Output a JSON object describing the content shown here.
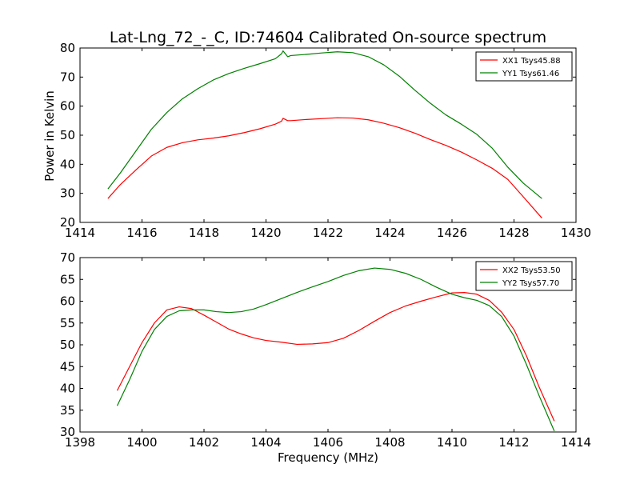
{
  "figure": {
    "title": "Lat-Lng_72_-_C, ID:74604 Calibrated On-source spectrum",
    "xlabel": "Frequency (MHz)",
    "ylabel": "Power in Kelvin"
  },
  "colors": {
    "red": "#ff0000",
    "green": "#008000"
  },
  "chart_data": [
    {
      "type": "line",
      "title": "Lat-Lng_72_-_C, ID:74604 Calibrated On-source spectrum",
      "xlabel": "",
      "ylabel": "Power in Kelvin",
      "xlim": [
        1414,
        1430
      ],
      "ylim": [
        20,
        80
      ],
      "xticks": [
        1414,
        1416,
        1418,
        1420,
        1422,
        1424,
        1426,
        1428,
        1430
      ],
      "yticks": [
        20,
        30,
        40,
        50,
        60,
        70,
        80
      ],
      "grid": false,
      "legend": "top-right",
      "series": [
        {
          "name": "XX1 Tsys45.88",
          "color": "#ff0000",
          "x": [
            1414.9,
            1415.3,
            1415.8,
            1416.3,
            1416.8,
            1417.3,
            1417.8,
            1418.3,
            1418.8,
            1419.3,
            1419.8,
            1420.3,
            1420.5,
            1420.55,
            1420.7,
            1420.8,
            1421.3,
            1421.8,
            1422.3,
            1422.8,
            1423.3,
            1423.8,
            1424.3,
            1424.8,
            1425.3,
            1425.8,
            1426.3,
            1426.8,
            1427.3,
            1427.8,
            1428.3,
            1428.9
          ],
          "y": [
            28.2,
            33,
            38,
            42.8,
            45.8,
            47.4,
            48.4,
            49,
            49.8,
            50.9,
            52.2,
            53.8,
            54.8,
            55.8,
            55,
            55,
            55.4,
            55.7,
            56,
            55.9,
            55.3,
            54.1,
            52.6,
            50.7,
            48.5,
            46.5,
            44.2,
            41.5,
            38.6,
            34.8,
            28.8,
            21.5
          ]
        },
        {
          "name": "YY1 Tsys61.46",
          "color": "#008000",
          "x": [
            1414.9,
            1415.3,
            1415.8,
            1416.3,
            1416.8,
            1417.3,
            1417.8,
            1418.3,
            1418.8,
            1419.3,
            1419.8,
            1420.3,
            1420.5,
            1420.55,
            1420.7,
            1420.8,
            1421.3,
            1421.8,
            1422.3,
            1422.8,
            1423.3,
            1423.8,
            1424.3,
            1424.8,
            1425.3,
            1425.8,
            1426.3,
            1426.8,
            1427.3,
            1427.8,
            1428.3,
            1428.9
          ],
          "y": [
            31.5,
            37,
            44.5,
            52,
            57.8,
            62.5,
            66,
            69,
            71.2,
            73,
            74.6,
            76.3,
            78,
            79,
            77,
            77.4,
            77.8,
            78.3,
            78.7,
            78.4,
            77,
            74.2,
            70.3,
            65.5,
            61,
            57,
            53.8,
            50.3,
            45.5,
            39,
            33.5,
            28.2
          ]
        }
      ]
    },
    {
      "type": "line",
      "title": "",
      "xlabel": "Frequency (MHz)",
      "ylabel": "",
      "xlim": [
        1398,
        1414
      ],
      "ylim": [
        30,
        70
      ],
      "xticks": [
        1398,
        1400,
        1402,
        1404,
        1406,
        1408,
        1410,
        1412,
        1414
      ],
      "yticks": [
        30,
        35,
        40,
        45,
        50,
        55,
        60,
        65,
        70
      ],
      "grid": false,
      "legend": "top-right",
      "series": [
        {
          "name": "XX2 Tsys53.50",
          "color": "#ff0000",
          "x": [
            1399.2,
            1399.6,
            1400,
            1400.4,
            1400.8,
            1401.2,
            1401.6,
            1402,
            1402.4,
            1402.8,
            1403.2,
            1403.6,
            1404,
            1404.5,
            1405,
            1405.5,
            1406,
            1406.5,
            1407,
            1407.5,
            1408,
            1408.5,
            1409,
            1409.5,
            1410,
            1410.4,
            1410.8,
            1411.2,
            1411.6,
            1412,
            1412.4,
            1412.8,
            1413.3
          ],
          "y": [
            39.5,
            45,
            50.5,
            55,
            58,
            58.7,
            58.3,
            56.8,
            55.2,
            53.6,
            52.5,
            51.6,
            51,
            50.6,
            50.1,
            50.2,
            50.5,
            51.5,
            53.3,
            55.4,
            57.4,
            58.9,
            60,
            61,
            61.9,
            62,
            61.6,
            60.2,
            57.5,
            53.5,
            47.5,
            40.5,
            32.5
          ]
        },
        {
          "name": "YY2 Tsys57.70",
          "color": "#008000",
          "x": [
            1399.2,
            1399.6,
            1400,
            1400.4,
            1400.8,
            1401.2,
            1401.6,
            1402,
            1402.4,
            1402.8,
            1403.2,
            1403.6,
            1404,
            1404.5,
            1405,
            1405.5,
            1406,
            1406.5,
            1407,
            1407.5,
            1408,
            1408.5,
            1409,
            1409.5,
            1410,
            1410.4,
            1410.8,
            1411.2,
            1411.6,
            1412,
            1412.4,
            1412.8,
            1413.3
          ],
          "y": [
            36,
            42,
            48.5,
            53.5,
            56.5,
            57.8,
            58,
            58,
            57.6,
            57.4,
            57.6,
            58.2,
            59.2,
            60.6,
            62,
            63.3,
            64.5,
            65.9,
            67,
            67.6,
            67.3,
            66.4,
            65,
            63.2,
            61.6,
            60.8,
            60.2,
            59,
            56.5,
            52,
            45.5,
            38.5,
            30.2
          ]
        }
      ]
    }
  ]
}
